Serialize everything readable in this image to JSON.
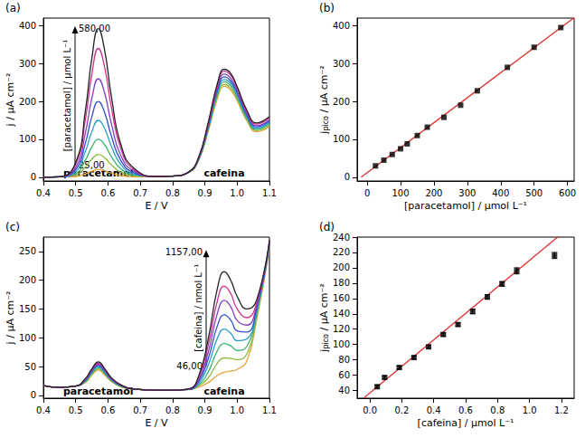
{
  "chart_data": [
    {
      "type": "line",
      "title": "(a)",
      "xlabel": "E / V",
      "ylabel": "j / µA cm⁻²",
      "x": [
        0.4,
        0.45,
        0.5,
        0.53,
        0.55,
        0.57,
        0.59,
        0.61,
        0.64,
        0.68,
        0.75,
        0.8,
        0.85,
        0.88,
        0.91,
        0.94,
        0.96,
        0.98,
        1.0,
        1.03,
        1.06,
        1.1
      ],
      "series": [
        {
          "color": "#e8a33c",
          "values": [
            0,
            1,
            2,
            9,
            16,
            20,
            17,
            11,
            4.4,
            1.2,
            2,
            3,
            12,
            43,
            120,
            211,
            240,
            230,
            202,
            149,
            120,
            134
          ]
        },
        {
          "color": "#8fbc3f",
          "values": [
            0,
            1,
            6,
            27,
            48,
            60,
            51,
            33,
            13,
            3.6,
            2,
            3,
            12,
            44,
            123,
            216,
            245,
            235,
            206,
            152,
            123,
            137
          ]
        },
        {
          "color": "#3cb371",
          "values": [
            0,
            1,
            10,
            45,
            80,
            100,
            85,
            55,
            22,
            6,
            2,
            3,
            13,
            45,
            126,
            222,
            252,
            242,
            212,
            156,
            126,
            141
          ]
        },
        {
          "color": "#2aa0c8",
          "values": [
            0,
            1,
            15,
            68,
            120,
            150,
            128,
            83,
            33,
            9,
            2,
            3,
            13,
            46,
            129,
            227,
            258,
            248,
            217,
            160,
            129,
            144
          ]
        },
        {
          "color": "#3050d0",
          "values": [
            0,
            1,
            20,
            90,
            160,
            200,
            170,
            110,
            44,
            12,
            2,
            3,
            13,
            48,
            133,
            233,
            265,
            254,
            223,
            164,
            133,
            148
          ]
        },
        {
          "color": "#8040c0",
          "values": [
            0,
            1,
            26,
            117,
            208,
            260,
            221,
            143,
            57,
            16,
            2,
            3,
            14,
            49,
            136,
            239,
            272,
            261,
            228,
            169,
            136,
            152
          ]
        },
        {
          "color": "#d03090",
          "values": [
            0,
            1,
            34,
            153,
            272,
            340,
            289,
            187,
            75,
            20,
            2,
            3,
            14,
            50,
            140,
            246,
            280,
            269,
            235,
            174,
            140,
            157
          ]
        },
        {
          "color": "#222222",
          "values": [
            0,
            1,
            39,
            176,
            314,
            392,
            333,
            216,
            86,
            24,
            2,
            3,
            14,
            51,
            143,
            251,
            285,
            274,
            239,
            177,
            143,
            160
          ]
        }
      ],
      "xlim": [
        0.4,
        1.1
      ],
      "xticks": [
        0.4,
        0.5,
        0.6,
        0.7,
        0.8,
        0.9,
        {
          "value": 1,
          "label": "1.0"
        },
        1.1
      ],
      "ylim": [
        -10,
        420
      ],
      "yticks": [
        0,
        100,
        200,
        300,
        400
      ],
      "grid": false,
      "arrow_label": "[paracetamol] / µmol L⁻¹",
      "arrow_ends": [
        "25,00",
        "580,00"
      ],
      "peak_labels": [
        "paracetamol",
        "cafeina"
      ]
    },
    {
      "type": "scatter",
      "title": "(b)",
      "xlabel": "[paracetamol] / µmol L⁻¹",
      "ylabel": [
        "j",
        "pico",
        " / µA cm⁻²"
      ],
      "x": [
        25,
        50,
        75,
        100,
        120,
        150,
        180,
        230,
        280,
        330,
        420,
        500,
        580
      ],
      "values": [
        30,
        45,
        60,
        75,
        88,
        110,
        132,
        158,
        190,
        228,
        290,
        343,
        395
      ],
      "color": "#000000",
      "marker": "square",
      "fit": {
        "x": [
          -18,
          620
        ],
        "y": [
          0,
          421
        ],
        "color": "#e03030"
      },
      "xlim": [
        -30,
        620
      ],
      "xticks": [
        0,
        100,
        200,
        300,
        400,
        500,
        600
      ],
      "ylim": [
        -10,
        420
      ],
      "yticks": [
        0,
        100,
        200,
        300,
        400
      ],
      "grid": false
    },
    {
      "type": "line",
      "title": "(c)",
      "xlabel": "E / V",
      "ylabel": "j / µA cm⁻²",
      "x": [
        0.4,
        0.45,
        0.5,
        0.53,
        0.55,
        0.57,
        0.59,
        0.61,
        0.64,
        0.68,
        0.75,
        0.8,
        0.85,
        0.88,
        0.91,
        0.94,
        0.96,
        0.98,
        1.0,
        1.03,
        1.06,
        1.1
      ],
      "series": [
        {
          "color": "#e8a33c",
          "values": [
            17,
            14,
            16,
            22,
            35,
            44,
            35,
            24,
            15,
            11,
            9,
            9,
            10,
            14,
            22,
            35,
            40,
            42,
            45,
            60,
            130,
            255
          ]
        },
        {
          "color": "#8fbc3f",
          "values": [
            17,
            14,
            16,
            23,
            37,
            46,
            37,
            25,
            15,
            11,
            9,
            9,
            10,
            16,
            30,
            57,
            65,
            64,
            62,
            72,
            135,
            258
          ]
        },
        {
          "color": "#3cb371",
          "values": [
            17,
            14,
            16,
            24,
            38,
            48,
            38,
            26,
            16,
            11,
            9,
            9,
            10,
            18,
            40,
            79,
            90,
            86,
            78,
            85,
            140,
            260
          ]
        },
        {
          "color": "#2aa0c8",
          "values": [
            17,
            14,
            16,
            25,
            40,
            50,
            40,
            27,
            16,
            11,
            9,
            9,
            10,
            20,
            52,
            101,
            115,
            108,
            95,
            98,
            145,
            262
          ]
        },
        {
          "color": "#3050d0",
          "values": [
            17,
            14,
            16,
            26,
            42,
            52,
            42,
            28,
            17,
            11,
            9,
            9,
            10,
            23,
            63,
            123,
            140,
            131,
            112,
            110,
            150,
            264
          ]
        },
        {
          "color": "#8040c0",
          "values": [
            17,
            14,
            16,
            27,
            43,
            54,
            43,
            29,
            17,
            11,
            9,
            9,
            11,
            26,
            74,
            145,
            165,
            154,
            130,
            122,
            155,
            266
          ]
        },
        {
          "color": "#d03090",
          "values": [
            17,
            14,
            16,
            28,
            45,
            56,
            45,
            30,
            18,
            11,
            9,
            9,
            11,
            29,
            86,
            167,
            190,
            177,
            150,
            135,
            160,
            268
          ]
        },
        {
          "color": "#222222",
          "values": [
            17,
            14,
            16,
            29,
            46,
            58,
            46,
            31,
            18,
            11,
            9,
            9,
            11,
            32,
            97,
            189,
            215,
            200,
            172,
            150,
            165,
            270
          ]
        }
      ],
      "xlim": [
        0.4,
        1.1
      ],
      "xticks": [
        0.4,
        0.5,
        0.6,
        0.7,
        0.8,
        0.9,
        {
          "value": 1,
          "label": "1.0"
        },
        1.1
      ],
      "ylim": [
        -5,
        275
      ],
      "yticks": [
        0,
        50,
        100,
        150,
        200,
        250
      ],
      "grid": false,
      "arrow_label": "[cafeina] / nmol L⁻¹",
      "arrow_ends": [
        "46,00",
        "1157,00"
      ],
      "peak_labels": [
        "paracetamol",
        "cafeina"
      ]
    },
    {
      "type": "scatter",
      "title": "(d)",
      "xlabel": "[cafeina] / µmol L⁻¹",
      "ylabel": [
        "j",
        "pico",
        " / µA cm⁻²"
      ],
      "x": [
        0.046,
        0.092,
        0.184,
        0.276,
        0.368,
        0.46,
        0.552,
        0.644,
        0.736,
        0.828,
        0.92,
        1.157
      ],
      "values": [
        45,
        57,
        70,
        83,
        97,
        113,
        126,
        143,
        162,
        179,
        196,
        216
      ],
      "errors": [
        2,
        2,
        2,
        2,
        2,
        2,
        2,
        3,
        3,
        3,
        4,
        4
      ],
      "color": "#000000",
      "marker": "square",
      "fit": {
        "x": [
          -0.04,
          1.28
        ],
        "y": [
          30,
          258
        ],
        "color": "#e03030"
      },
      "xlim": [
        -0.08,
        1.28
      ],
      "xticks": [
        {
          "value": 0,
          "label": "0.0"
        },
        0.2,
        0.4,
        0.6,
        0.8,
        {
          "value": 1,
          "label": "1.0"
        },
        1.2
      ],
      "ylim": [
        30,
        240
      ],
      "yticks": [
        40,
        60,
        80,
        100,
        120,
        140,
        160,
        180,
        200,
        220,
        240
      ],
      "grid": false
    }
  ]
}
